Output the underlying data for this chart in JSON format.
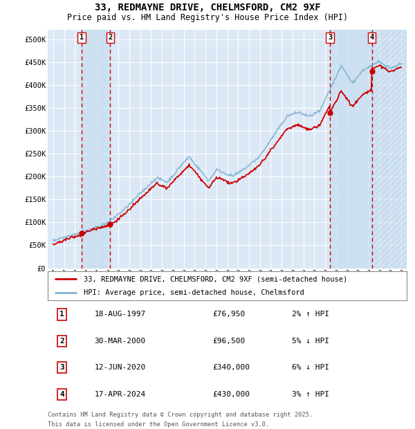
{
  "title": "33, REDMAYNE DRIVE, CHELMSFORD, CM2 9XF",
  "subtitle": "Price paid vs. HM Land Registry's House Price Index (HPI)",
  "legend_line1": "33, REDMAYNE DRIVE, CHELMSFORD, CM2 9XF (semi-detached house)",
  "legend_line2": "HPI: Average price, semi-detached house, Chelmsford",
  "footer_line1": "Contains HM Land Registry data © Crown copyright and database right 2025.",
  "footer_line2": "This data is licensed under the Open Government Licence v3.0.",
  "hpi_color": "#7fb3d3",
  "price_color": "#cc0000",
  "plot_bg_color": "#dce8f5",
  "grid_color": "#ffffff",
  "span_color": "#c8dff0",
  "hatch_color": "#b0cce0",
  "transactions": [
    {
      "num": "1",
      "date_x": 1997.62,
      "price": 76950,
      "date_str": "18-AUG-1997",
      "pct": "2% ↑ HPI"
    },
    {
      "num": "2",
      "date_x": 2000.25,
      "price": 96500,
      "date_str": "30-MAR-2000",
      "pct": "5% ↓ HPI"
    },
    {
      "num": "3",
      "date_x": 2020.45,
      "price": 340000,
      "date_str": "12-JUN-2020",
      "pct": "6% ↓ HPI"
    },
    {
      "num": "4",
      "date_x": 2024.29,
      "price": 430000,
      "date_str": "17-APR-2024",
      "pct": "3% ↑ HPI"
    }
  ],
  "ylim": [
    0,
    520000
  ],
  "xlim": [
    1994.5,
    2027.5
  ],
  "yticks": [
    0,
    50000,
    100000,
    150000,
    200000,
    250000,
    300000,
    350000,
    400000,
    450000,
    500000
  ],
  "ytick_labels": [
    "£0",
    "£50K",
    "£100K",
    "£150K",
    "£200K",
    "£250K",
    "£300K",
    "£350K",
    "£400K",
    "£450K",
    "£500K"
  ],
  "xticks": [
    1995,
    1996,
    1997,
    1998,
    1999,
    2000,
    2001,
    2002,
    2003,
    2004,
    2005,
    2006,
    2007,
    2008,
    2009,
    2010,
    2011,
    2012,
    2013,
    2014,
    2015,
    2016,
    2017,
    2018,
    2019,
    2020,
    2021,
    2022,
    2023,
    2024,
    2025,
    2026,
    2027
  ]
}
